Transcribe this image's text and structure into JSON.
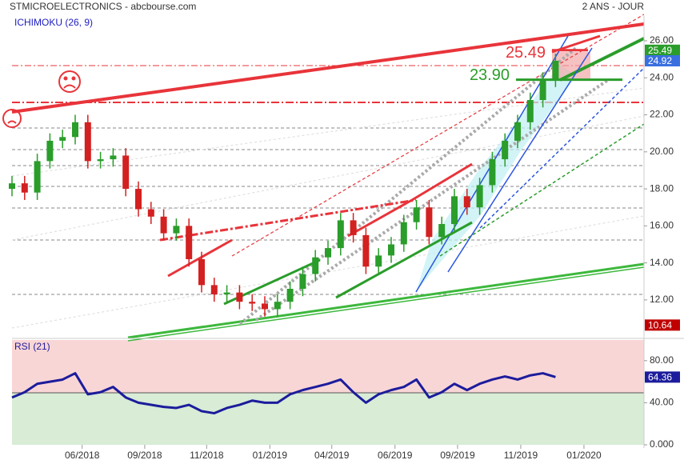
{
  "chart_data": [
    {
      "type": "candlestick",
      "title": "STMICROELECTRONICS - abcbourse.com",
      "subtitle": "2 ANS - JOUR",
      "indicator": "ICHIMOKU (26, 9)",
      "x": [
        0,
        2,
        4,
        6,
        8,
        10,
        12,
        14,
        16,
        18,
        20,
        22,
        24,
        26,
        28,
        30,
        32,
        34,
        36,
        38,
        40,
        42,
        44,
        46,
        48,
        50,
        52,
        54,
        56,
        58,
        60,
        62,
        64,
        66,
        68,
        70,
        72,
        74,
        76,
        78,
        80,
        82,
        84,
        86
      ],
      "open": [
        18.0,
        18.3,
        17.8,
        19.5,
        20.6,
        20.8,
        21.6,
        19.5,
        19.6,
        19.8,
        18.0,
        16.9,
        16.5,
        15.6,
        16.0,
        14.2,
        12.8,
        12.3,
        12.4,
        11.9,
        11.8,
        11.5,
        11.9,
        12.6,
        13.4,
        14.3,
        14.8,
        16.3,
        15.5,
        13.8,
        14.4,
        15.0,
        16.2,
        17.0,
        15.4,
        16.1,
        17.6,
        17.0,
        18.2,
        19.6,
        20.6,
        21.6,
        22.8,
        23.9
      ],
      "high": [
        18.7,
        18.7,
        19.9,
        21.0,
        21.2,
        22.0,
        22.0,
        20.0,
        20.2,
        20.2,
        18.4,
        17.3,
        16.9,
        16.4,
        16.4,
        14.6,
        13.2,
        12.8,
        12.8,
        12.3,
        12.2,
        12.3,
        13.0,
        13.8,
        14.7,
        15.2,
        16.7,
        16.7,
        15.9,
        14.8,
        15.4,
        16.6,
        17.4,
        17.4,
        16.5,
        18.0,
        18.0,
        18.6,
        20.0,
        21.0,
        22.0,
        23.2,
        24.3,
        25.3
      ],
      "low": [
        17.6,
        17.4,
        17.4,
        19.1,
        20.2,
        20.4,
        19.1,
        19.1,
        19.2,
        17.6,
        16.5,
        16.1,
        15.2,
        15.2,
        13.8,
        12.4,
        11.9,
        11.9,
        11.5,
        11.4,
        11.1,
        11.1,
        11.5,
        12.2,
        13.0,
        13.9,
        14.4,
        15.1,
        13.4,
        13.4,
        14.0,
        14.6,
        15.8,
        15.0,
        15.0,
        15.7,
        16.6,
        16.6,
        17.8,
        19.2,
        20.2,
        21.2,
        22.4,
        23.5
      ],
      "close": [
        18.3,
        17.8,
        19.5,
        20.6,
        20.8,
        21.6,
        19.5,
        19.6,
        19.8,
        18.0,
        16.9,
        16.5,
        15.6,
        16.0,
        14.2,
        12.8,
        12.3,
        12.4,
        11.9,
        11.8,
        11.5,
        11.9,
        12.6,
        13.4,
        14.3,
        14.8,
        16.3,
        15.5,
        13.8,
        14.4,
        15.0,
        16.2,
        17.0,
        15.4,
        16.1,
        17.6,
        17.0,
        18.2,
        19.6,
        20.6,
        21.6,
        22.8,
        23.9,
        24.92
      ],
      "up_color": "#2a9d2a",
      "down_color": "#d32020",
      "xlim": [
        0,
        100
      ],
      "xticks": [
        {
          "value": 11.1,
          "label": "06/2018"
        },
        {
          "value": 21.0,
          "label": "09/2018"
        },
        {
          "value": 30.8,
          "label": "11/2018"
        },
        {
          "value": 40.8,
          "label": "01/2019"
        },
        {
          "value": 50.6,
          "label": "04/2019"
        },
        {
          "value": 60.6,
          "label": "06/2019"
        },
        {
          "value": 70.5,
          "label": "09/2019"
        },
        {
          "value": 80.5,
          "label": "11/2019"
        },
        {
          "value": 90.5,
          "label": "01/2020"
        }
      ],
      "ylim": [
        10.05,
        27.34
      ],
      "yticks": [
        {
          "value": 12,
          "label": "12.00"
        },
        {
          "value": 14,
          "label": "14.00"
        },
        {
          "value": 16,
          "label": "16.00"
        },
        {
          "value": 18,
          "label": "18.00"
        },
        {
          "value": 20,
          "label": "20.00"
        },
        {
          "value": 22,
          "label": "22.00"
        },
        {
          "value": 24,
          "label": "24.00"
        },
        {
          "value": 26,
          "label": "26.00"
        }
      ],
      "annotations": [
        {
          "value": 25.49,
          "label": "25.49",
          "color": "#e8343a"
        },
        {
          "value": 23.9,
          "label": "23.90",
          "color": "#2a9d2a"
        }
      ],
      "price_tags": [
        {
          "value": 25.49,
          "color": "#2a9d2a"
        },
        {
          "value": 24.92,
          "color": "#3a6fe0"
        },
        {
          "value": 10.64,
          "color": "#c00000"
        }
      ]
    },
    {
      "type": "line",
      "title": "RSI (21)",
      "x": [
        0,
        2,
        4,
        6,
        8,
        10,
        12,
        14,
        16,
        18,
        20,
        22,
        24,
        26,
        28,
        30,
        32,
        34,
        36,
        38,
        40,
        42,
        44,
        46,
        48,
        50,
        52,
        54,
        56,
        58,
        60,
        62,
        64,
        66,
        68,
        70,
        72,
        74,
        76,
        78,
        80,
        82,
        84,
        86
      ],
      "values": [
        45,
        50,
        58,
        60,
        62,
        68,
        48,
        50,
        55,
        45,
        40,
        38,
        36,
        35,
        38,
        32,
        30,
        35,
        38,
        42,
        40,
        40,
        48,
        52,
        55,
        58,
        62,
        50,
        40,
        48,
        52,
        55,
        62,
        45,
        50,
        58,
        52,
        58,
        62,
        65,
        62,
        66,
        68,
        64.36
      ],
      "color": "#1c1c9c",
      "ylim": [
        0,
        100
      ],
      "yticks": [
        {
          "value": 0,
          "label": "0.000"
        },
        {
          "value": 40,
          "label": "40.00"
        },
        {
          "value": 80,
          "label": "80.00"
        }
      ],
      "price_tags": [
        {
          "value": 64.36,
          "color": "#1c1c9c"
        }
      ]
    }
  ]
}
